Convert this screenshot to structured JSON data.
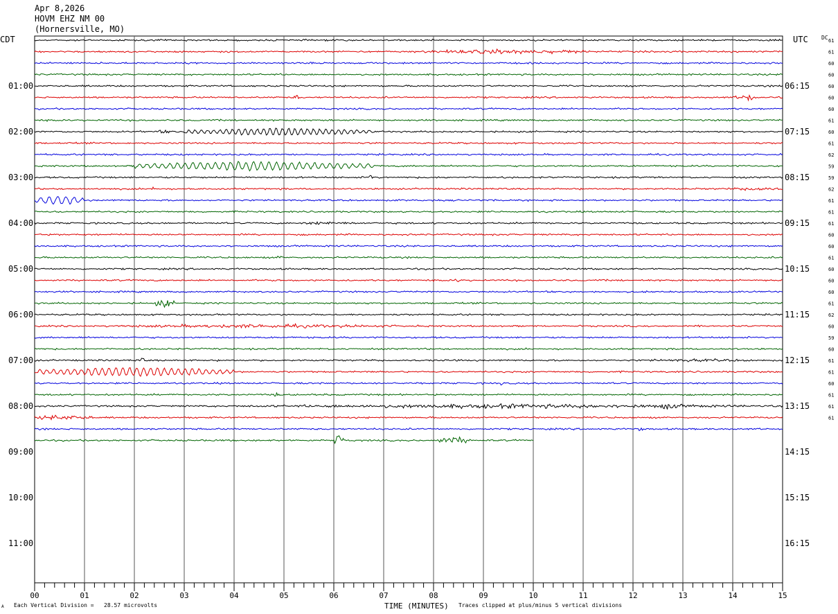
{
  "header": {
    "date": "Apr 8,2026",
    "station": "HOVM EHZ NM 00",
    "location": "(Hornersville, MO)"
  },
  "left_zone": "CDT",
  "right_zone": "UTC",
  "dc_label": "DC",
  "footer": {
    "division_note": "Each Vertical Division =   28.57 microvolts",
    "clip_note": "Traces clipped at plus/minus 5 vertical divisions",
    "corner_mark": "A"
  },
  "chart_data": {
    "type": "line",
    "title": "",
    "xlabel": "TIME (MINUTES)",
    "ylabel": "",
    "xlim": [
      0,
      15
    ],
    "x_ticks": [
      "00",
      "01",
      "02",
      "03",
      "04",
      "05",
      "06",
      "07",
      "08",
      "09",
      "10",
      "11",
      "12",
      "13",
      "14",
      "15"
    ],
    "grid": "vertical lines each minute",
    "hour_labels_left": [
      "01:00",
      "02:00",
      "03:00",
      "04:00",
      "05:00",
      "06:00",
      "07:00",
      "08:00",
      "09:00",
      "10:00",
      "11:00"
    ],
    "hour_labels_right": [
      "06:15",
      "07:15",
      "08:15",
      "09:15",
      "10:15",
      "11:15",
      "12:15",
      "13:15",
      "14:15",
      "15:15",
      "16:15"
    ],
    "trace_colors": [
      "#000000",
      "#dd0000",
      "#0000dd",
      "#006400"
    ],
    "total_rows": 36,
    "last_trace_end_minute": 10,
    "dc_values": [
      "61",
      "61",
      "60",
      "60",
      "60",
      "60",
      "60",
      "61",
      "60",
      "61",
      "62",
      "59",
      "59",
      "62",
      "61",
      "61",
      "61",
      "60",
      "60",
      "61",
      "60",
      "60",
      "60",
      "61",
      "62",
      "60",
      "59",
      "60",
      "61",
      "61",
      "60",
      "61",
      "61",
      "61"
    ]
  }
}
